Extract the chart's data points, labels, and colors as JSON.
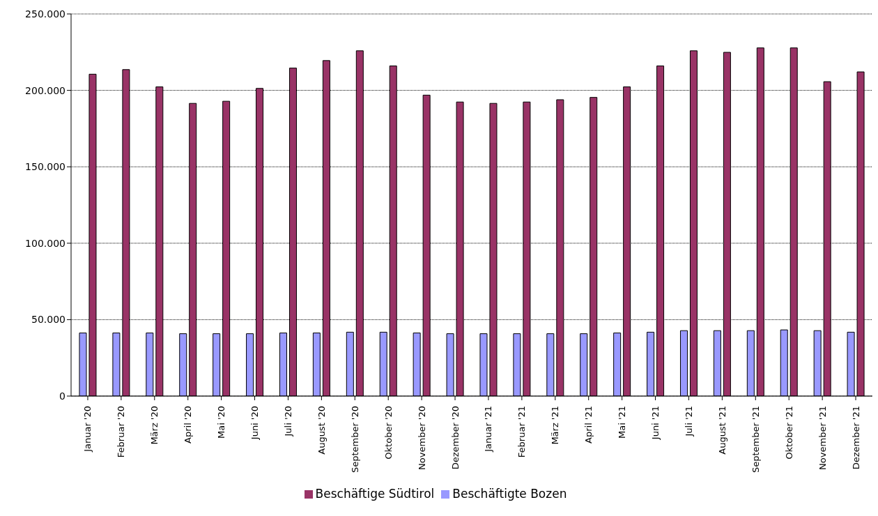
{
  "chart_data": {
    "type": "bar",
    "categories": [
      "Januar '20",
      "Februar '20",
      "März '20",
      "April '20",
      "Mai '20",
      "Juni '20",
      "Juli '20",
      "August '20",
      "September '20",
      "Oktober '20",
      "November '20",
      "Dezember '20",
      "Januar '21",
      "Februar '21",
      "März '21",
      "April '21",
      "Mai '21",
      "Juni '21",
      "Juli '21",
      "August '21",
      "September '21",
      "Oktober '21",
      "November '21",
      "Dezember '21"
    ],
    "series": [
      {
        "name": "Beschäftigte Bozen",
        "color": "#9999ff",
        "values": [
          41300,
          41300,
          41300,
          40800,
          40800,
          40800,
          41300,
          41300,
          41800,
          41800,
          41300,
          40800,
          40800,
          40800,
          40800,
          40800,
          41300,
          41800,
          42800,
          42800,
          42800,
          43300,
          42800,
          41800
        ]
      },
      {
        "name": "Beschäftige Südtirol",
        "color": "#993366",
        "values": [
          210600,
          213600,
          202300,
          191500,
          192900,
          201300,
          214600,
          219500,
          225900,
          216000,
          196900,
          192400,
          191500,
          192400,
          193900,
          195400,
          202300,
          216000,
          225900,
          224900,
          227800,
          227800,
          205700,
          212100
        ]
      }
    ],
    "ylim": [
      0,
      250000
    ],
    "yticks": [
      {
        "value": 0,
        "label": "0"
      },
      {
        "value": 50000,
        "label": "50.000"
      },
      {
        "value": 100000,
        "label": "100.000"
      },
      {
        "value": 150000,
        "label": "150.000"
      },
      {
        "value": 200000,
        "label": "200.000"
      },
      {
        "value": 250000,
        "label": "250.000"
      }
    ],
    "grid": "y",
    "legend": "bottom"
  }
}
